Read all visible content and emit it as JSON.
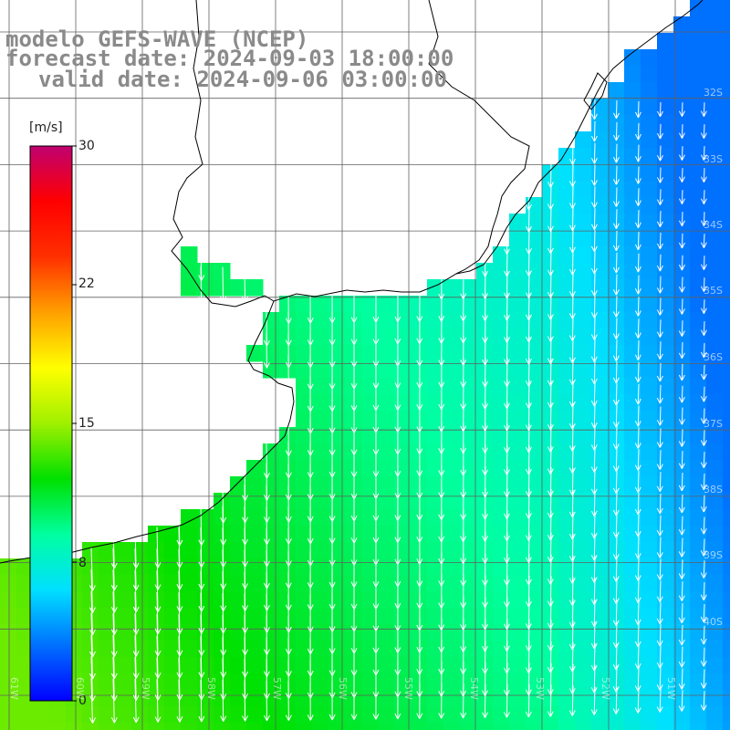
{
  "title": {
    "line1": "modelo GEFS-WAVE (NCEP)",
    "line2": "forecast date: 2024-09-03 18:00:00",
    "line3": "valid date: 2024-09-06 03:00:00"
  },
  "colorbar": {
    "unit": "[m/s]",
    "ticks": [
      "30",
      "22",
      "15",
      "8",
      "0"
    ],
    "range": [
      0,
      30
    ],
    "colors": [
      "#0000ff",
      "#0070ff",
      "#00e0ff",
      "#00ffa0",
      "#00e000",
      "#a0f000",
      "#ffff00",
      "#ffa000",
      "#ff3000",
      "#ff0000",
      "#c00070"
    ]
  },
  "latitude_labels": [
    "32S",
    "33S",
    "34S",
    "35S",
    "36S",
    "37S",
    "38S",
    "39S",
    "40S"
  ],
  "longitude_labels": [
    "61W",
    "60W",
    "59W",
    "58W",
    "57W",
    "56W",
    "55W",
    "54W",
    "53W",
    "52W",
    "51W"
  ],
  "icons": {
    "wind_vector": "arrow-icon"
  },
  "field": {
    "quantity": "wind speed",
    "speed_range_shown": [
      3,
      14
    ]
  }
}
